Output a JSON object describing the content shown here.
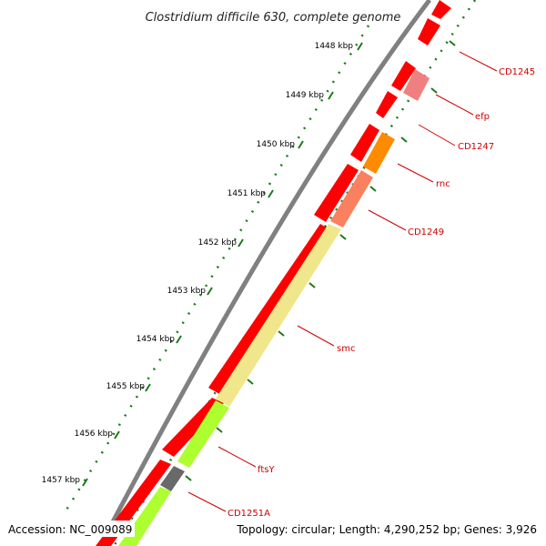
{
  "title": "Clostridium difficile 630, complete genome",
  "kbp_labels": [
    "1448 kbp",
    "1449 kbp",
    "1450 kbp",
    "1451 kbp",
    "1452 kbp",
    "1453 kbp",
    "1454 kbp",
    "1455 kbp",
    "1456 kbp",
    "1457 kbp"
  ],
  "genes": [
    {
      "name": "CD1245"
    },
    {
      "name": "efp"
    },
    {
      "name": "CD1247"
    },
    {
      "name": "rnc"
    },
    {
      "name": "CD1249"
    },
    {
      "name": "smc"
    },
    {
      "name": "ftsY"
    },
    {
      "name": "CD1251A"
    }
  ],
  "footer": {
    "accession": "Accession: NC_009089",
    "stats": "Topology: circular; Length: 4,290,252 bp; Genes: 3,926"
  },
  "colors": {
    "backbone": "#808080",
    "ruler": "#1a7a1a",
    "gene_label": "#cc0000",
    "feature_red": "#ff0000",
    "feature_pink": "#f08080",
    "feature_orange": "#ff8c00",
    "feature_salmon": "#fa8060",
    "feature_khaki": "#f0e68c",
    "feature_green": "#adff2f",
    "feature_gray": "#696969"
  }
}
